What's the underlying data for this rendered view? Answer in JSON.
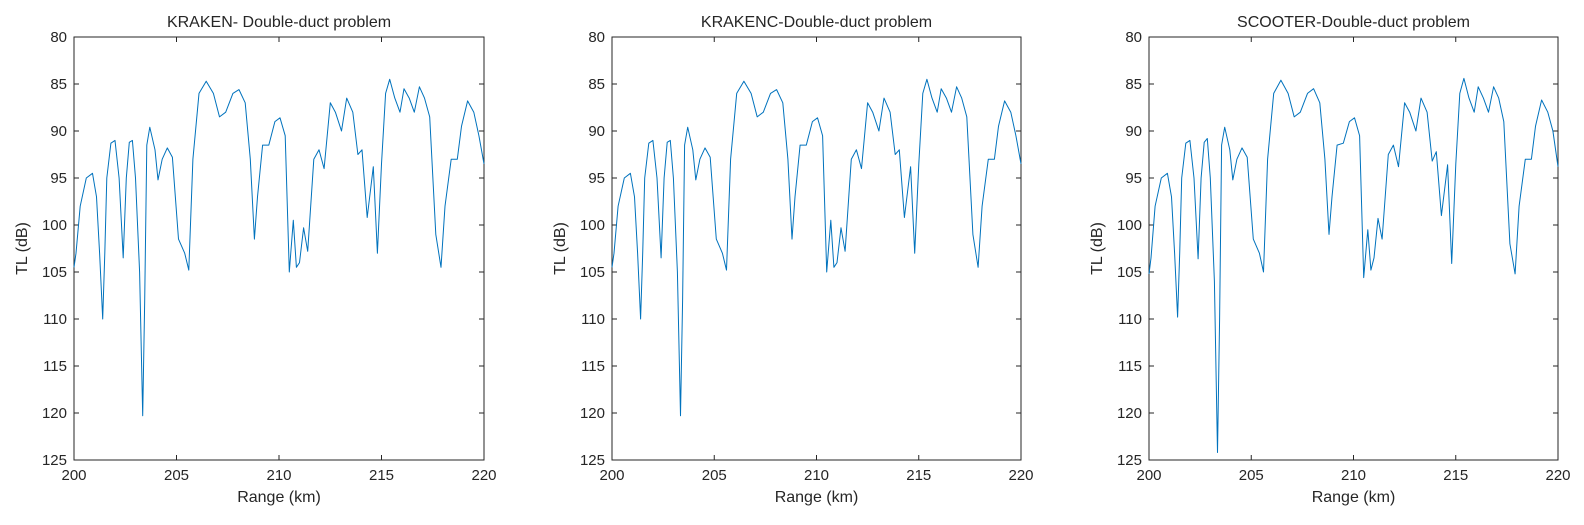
{
  "chart_data": [
    {
      "type": "line",
      "title": "KRAKEN- Double-duct problem",
      "xlabel": "Range (km)",
      "ylabel": "TL (dB)",
      "xlim": [
        200,
        220
      ],
      "ylim": [
        125,
        80
      ],
      "y_reversed": true,
      "xticks": [
        200,
        205,
        210,
        215,
        220
      ],
      "yticks": [
        80,
        85,
        90,
        95,
        100,
        105,
        110,
        115,
        120,
        125
      ],
      "grid": false,
      "legend": "none",
      "color": "#0072BD",
      "series": [
        {
          "x": [
            200.0,
            200.1,
            200.3,
            200.6,
            200.9,
            201.1,
            201.25,
            201.4,
            201.5,
            201.6,
            201.8,
            202.0,
            202.2,
            202.4,
            202.55,
            202.7,
            202.85,
            203.0,
            203.2,
            203.35,
            203.45,
            203.55,
            203.7,
            203.95,
            204.1,
            204.3,
            204.55,
            204.8,
            205.1,
            205.4,
            205.6,
            205.8,
            206.1,
            206.45,
            206.8,
            207.1,
            207.4,
            207.75,
            208.05,
            208.35,
            208.6,
            208.8,
            208.95,
            209.2,
            209.5,
            209.8,
            210.05,
            210.3,
            210.5,
            210.7,
            210.85,
            211.0,
            211.2,
            211.4,
            211.7,
            211.95,
            212.2,
            212.5,
            212.75,
            213.05,
            213.3,
            213.6,
            213.85,
            214.05,
            214.3,
            214.6,
            214.8,
            215.0,
            215.2,
            215.4,
            215.65,
            215.9,
            216.1,
            216.35,
            216.6,
            216.85,
            217.1,
            217.35,
            217.65,
            217.9,
            218.1,
            218.4,
            218.7,
            218.9,
            219.2,
            219.5,
            219.75,
            220.0
          ],
          "y": [
            104.5,
            103.0,
            98.0,
            95.0,
            94.5,
            97.0,
            103.0,
            110.0,
            103.0,
            95.0,
            91.3,
            91.0,
            95.0,
            103.5,
            95.0,
            91.2,
            91.0,
            95.0,
            105.0,
            120.3,
            108.0,
            91.5,
            89.6,
            92.0,
            95.2,
            93.0,
            91.8,
            92.8,
            101.5,
            103.0,
            104.8,
            93.0,
            86.0,
            84.7,
            86.0,
            88.5,
            88.0,
            86.0,
            85.6,
            87.0,
            93.0,
            101.5,
            97.0,
            91.5,
            91.5,
            89.0,
            88.6,
            90.5,
            105.0,
            99.5,
            104.5,
            104.0,
            100.3,
            102.8,
            93.0,
            92.0,
            94.0,
            87.0,
            88.0,
            90.0,
            86.5,
            88.0,
            92.5,
            92.0,
            99.2,
            93.8,
            103.0,
            93.5,
            86.0,
            84.5,
            86.5,
            88.0,
            85.5,
            86.5,
            88.0,
            85.3,
            86.5,
            88.5,
            101.0,
            104.5,
            98.0,
            93.0,
            93.0,
            89.5,
            86.8,
            88.0,
            90.5,
            93.5
          ]
        }
      ]
    },
    {
      "type": "line",
      "title": "KRAKENC-Double-duct problem",
      "xlabel": "Range (km)",
      "ylabel": "TL (dB)",
      "xlim": [
        200,
        220
      ],
      "ylim": [
        125,
        80
      ],
      "y_reversed": true,
      "xticks": [
        200,
        205,
        210,
        215,
        220
      ],
      "yticks": [
        80,
        85,
        90,
        95,
        100,
        105,
        110,
        115,
        120,
        125
      ],
      "grid": false,
      "legend": "none",
      "color": "#0072BD",
      "series": [
        {
          "x": [
            200.0,
            200.1,
            200.3,
            200.6,
            200.9,
            201.1,
            201.25,
            201.4,
            201.5,
            201.6,
            201.8,
            202.0,
            202.2,
            202.4,
            202.55,
            202.7,
            202.85,
            203.0,
            203.2,
            203.35,
            203.45,
            203.55,
            203.7,
            203.95,
            204.1,
            204.3,
            204.55,
            204.8,
            205.1,
            205.4,
            205.6,
            205.8,
            206.1,
            206.45,
            206.8,
            207.1,
            207.4,
            207.75,
            208.05,
            208.35,
            208.6,
            208.8,
            208.95,
            209.2,
            209.5,
            209.8,
            210.05,
            210.3,
            210.5,
            210.7,
            210.85,
            211.0,
            211.2,
            211.4,
            211.7,
            211.95,
            212.2,
            212.5,
            212.75,
            213.05,
            213.3,
            213.6,
            213.85,
            214.05,
            214.3,
            214.6,
            214.8,
            215.0,
            215.2,
            215.4,
            215.65,
            215.9,
            216.1,
            216.35,
            216.6,
            216.85,
            217.1,
            217.35,
            217.65,
            217.9,
            218.1,
            218.4,
            218.7,
            218.9,
            219.2,
            219.5,
            219.75,
            220.0
          ],
          "y": [
            104.5,
            103.0,
            98.0,
            95.0,
            94.5,
            97.0,
            103.0,
            110.0,
            103.0,
            95.0,
            91.3,
            91.0,
            95.0,
            103.5,
            95.0,
            91.2,
            91.0,
            95.0,
            105.0,
            120.3,
            108.0,
            91.5,
            89.6,
            92.0,
            95.2,
            93.0,
            91.8,
            92.8,
            101.5,
            103.0,
            104.8,
            93.0,
            86.0,
            84.7,
            86.0,
            88.5,
            88.0,
            86.0,
            85.6,
            87.0,
            93.0,
            101.5,
            97.0,
            91.5,
            91.5,
            89.0,
            88.6,
            90.5,
            105.0,
            99.5,
            104.5,
            104.0,
            100.3,
            102.8,
            93.0,
            92.0,
            94.0,
            87.0,
            88.0,
            90.0,
            86.5,
            88.0,
            92.5,
            92.0,
            99.2,
            93.8,
            103.0,
            93.5,
            86.0,
            84.5,
            86.5,
            88.0,
            85.5,
            86.5,
            88.0,
            85.3,
            86.5,
            88.5,
            101.0,
            104.5,
            98.0,
            93.0,
            93.0,
            89.5,
            86.8,
            88.0,
            90.5,
            93.5
          ]
        }
      ]
    },
    {
      "type": "line",
      "title": "SCOOTER-Double-duct problem",
      "xlabel": "Range (km)",
      "ylabel": "TL (dB)",
      "xlim": [
        200,
        220
      ],
      "ylim": [
        125,
        80
      ],
      "y_reversed": true,
      "xticks": [
        200,
        205,
        210,
        215,
        220
      ],
      "yticks": [
        80,
        85,
        90,
        95,
        100,
        105,
        110,
        115,
        120,
        125
      ],
      "grid": false,
      "legend": "none",
      "color": "#0072BD",
      "series": [
        {
          "x": [
            200.0,
            200.1,
            200.3,
            200.6,
            200.9,
            201.1,
            201.25,
            201.4,
            201.5,
            201.6,
            201.8,
            202.0,
            202.2,
            202.4,
            202.55,
            202.7,
            202.85,
            203.0,
            203.2,
            203.35,
            203.45,
            203.55,
            203.7,
            203.95,
            204.1,
            204.3,
            204.55,
            204.8,
            205.1,
            205.4,
            205.6,
            205.8,
            206.1,
            206.45,
            206.8,
            207.1,
            207.4,
            207.75,
            208.05,
            208.35,
            208.6,
            208.8,
            208.95,
            209.2,
            209.5,
            209.8,
            210.05,
            210.3,
            210.5,
            210.7,
            210.85,
            211.0,
            211.2,
            211.4,
            211.7,
            211.95,
            212.2,
            212.5,
            212.75,
            213.05,
            213.3,
            213.6,
            213.85,
            214.05,
            214.3,
            214.6,
            214.8,
            215.0,
            215.2,
            215.4,
            215.65,
            215.9,
            216.1,
            216.35,
            216.6,
            216.85,
            217.1,
            217.35,
            217.65,
            217.9,
            218.1,
            218.4,
            218.7,
            218.9,
            219.2,
            219.5,
            219.75,
            220.0
          ],
          "y": [
            105.2,
            103.5,
            98.0,
            95.0,
            94.5,
            97.0,
            103.0,
            109.8,
            103.0,
            95.0,
            91.3,
            91.0,
            95.0,
            103.6,
            95.0,
            91.2,
            90.8,
            95.0,
            106.0,
            124.2,
            110.0,
            91.5,
            89.6,
            92.0,
            95.2,
            93.0,
            91.8,
            92.8,
            101.5,
            103.0,
            105.0,
            93.0,
            86.0,
            84.6,
            86.0,
            88.5,
            88.0,
            86.0,
            85.5,
            87.0,
            93.0,
            101.0,
            97.0,
            91.5,
            91.3,
            89.0,
            88.6,
            90.5,
            105.6,
            100.5,
            104.8,
            103.5,
            99.3,
            101.5,
            92.5,
            91.5,
            93.8,
            87.0,
            88.0,
            90.0,
            86.5,
            88.0,
            93.2,
            92.2,
            99.0,
            93.6,
            104.1,
            93.5,
            86.0,
            84.4,
            86.5,
            88.0,
            85.3,
            86.5,
            88.0,
            85.3,
            86.5,
            89.0,
            102.0,
            105.2,
            98.0,
            93.0,
            93.0,
            89.5,
            86.7,
            88.0,
            90.0,
            93.8
          ]
        }
      ]
    }
  ]
}
